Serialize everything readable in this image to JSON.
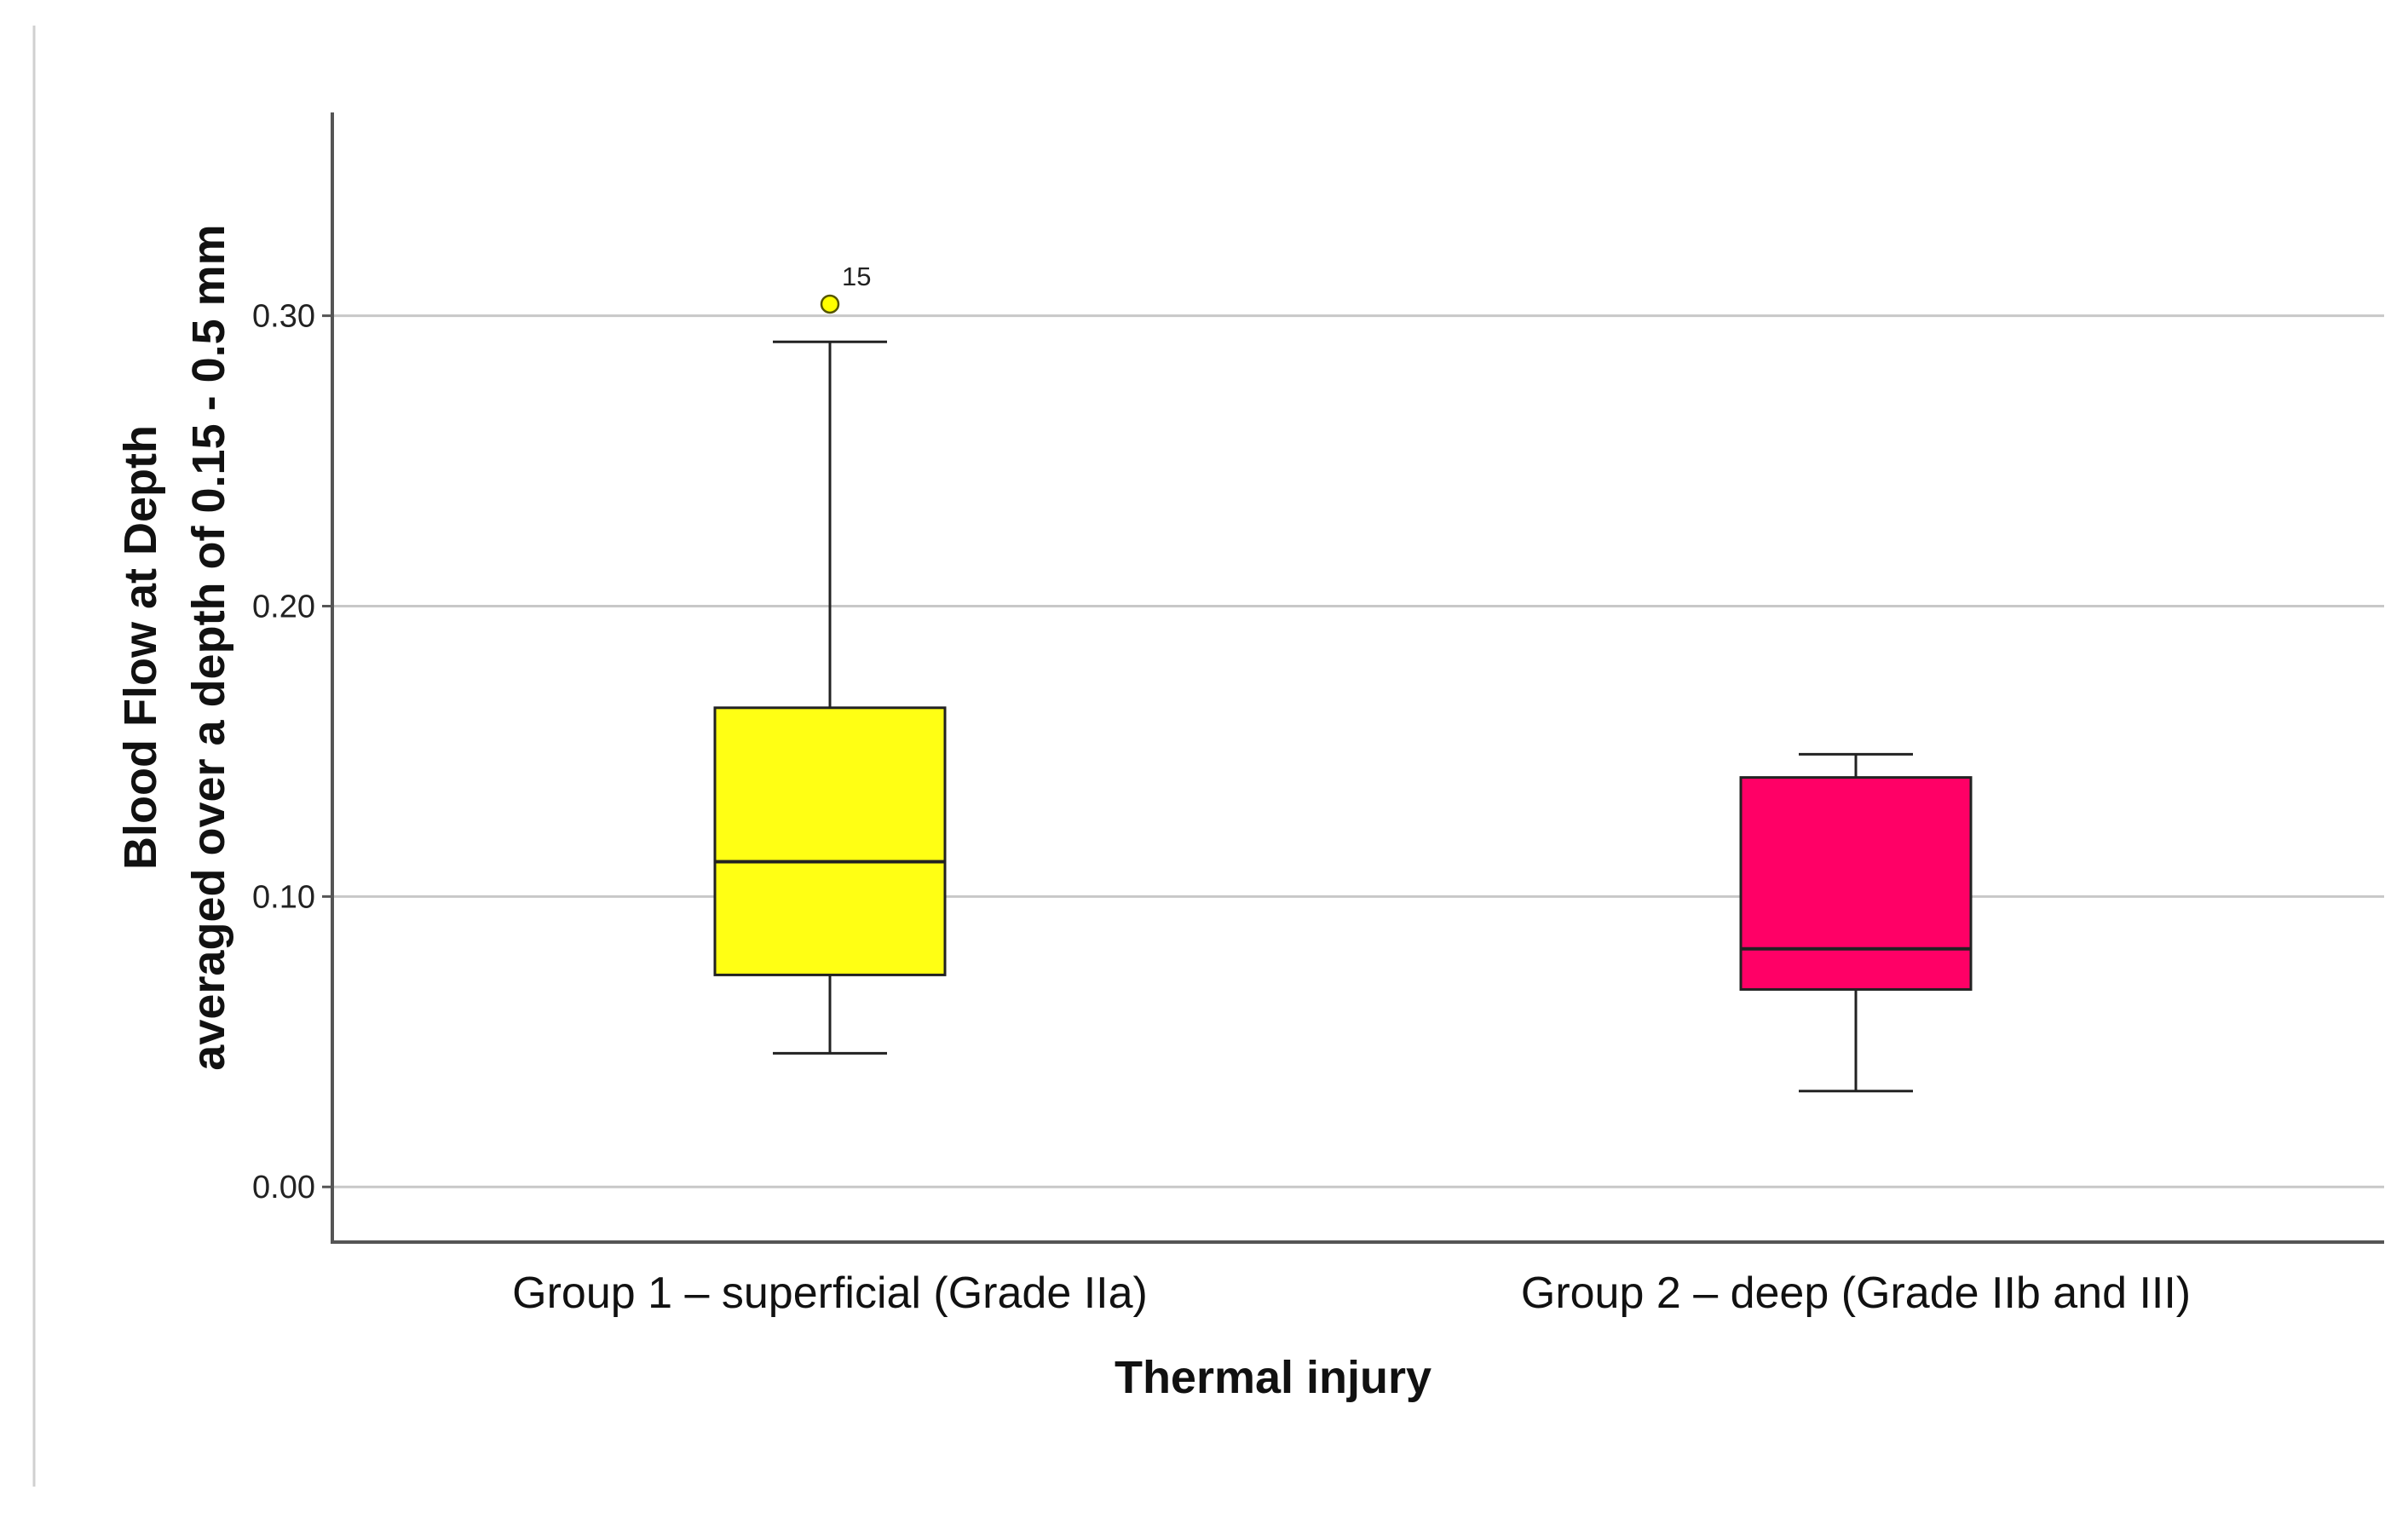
{
  "chart_data": {
    "type": "boxplot",
    "title": "",
    "xlabel": "Thermal injury",
    "ylabel_lines": [
      "Blood Flow at Depth",
      "averaged over a depth of 0.15 - 0.5 mm"
    ],
    "ylim": [
      -0.019,
      0.37
    ],
    "yticks": [
      0.0,
      0.1,
      0.2,
      0.3
    ],
    "ytick_labels": [
      "0.00",
      "0.10",
      "0.20",
      "0.30"
    ],
    "grid": true,
    "categories": [
      "Group 1 – superficial (Grade IIa)",
      "Group 2 – deep (Grade IIb and III)"
    ],
    "boxes": [
      {
        "category": "Group 1 – superficial (Grade IIa)",
        "whisker_low": 0.046,
        "q1": 0.073,
        "median": 0.112,
        "q3": 0.165,
        "whisker_high": 0.291,
        "color": "#ffff14",
        "outliers": [
          {
            "value": 0.304,
            "label": "15",
            "color": "#ffff00"
          }
        ]
      },
      {
        "category": "Group 2 – deep (Grade IIb and III)",
        "whisker_low": 0.033,
        "q1": 0.068,
        "median": 0.082,
        "q3": 0.141,
        "whisker_high": 0.149,
        "color": "#ff0066",
        "outliers": []
      }
    ]
  }
}
